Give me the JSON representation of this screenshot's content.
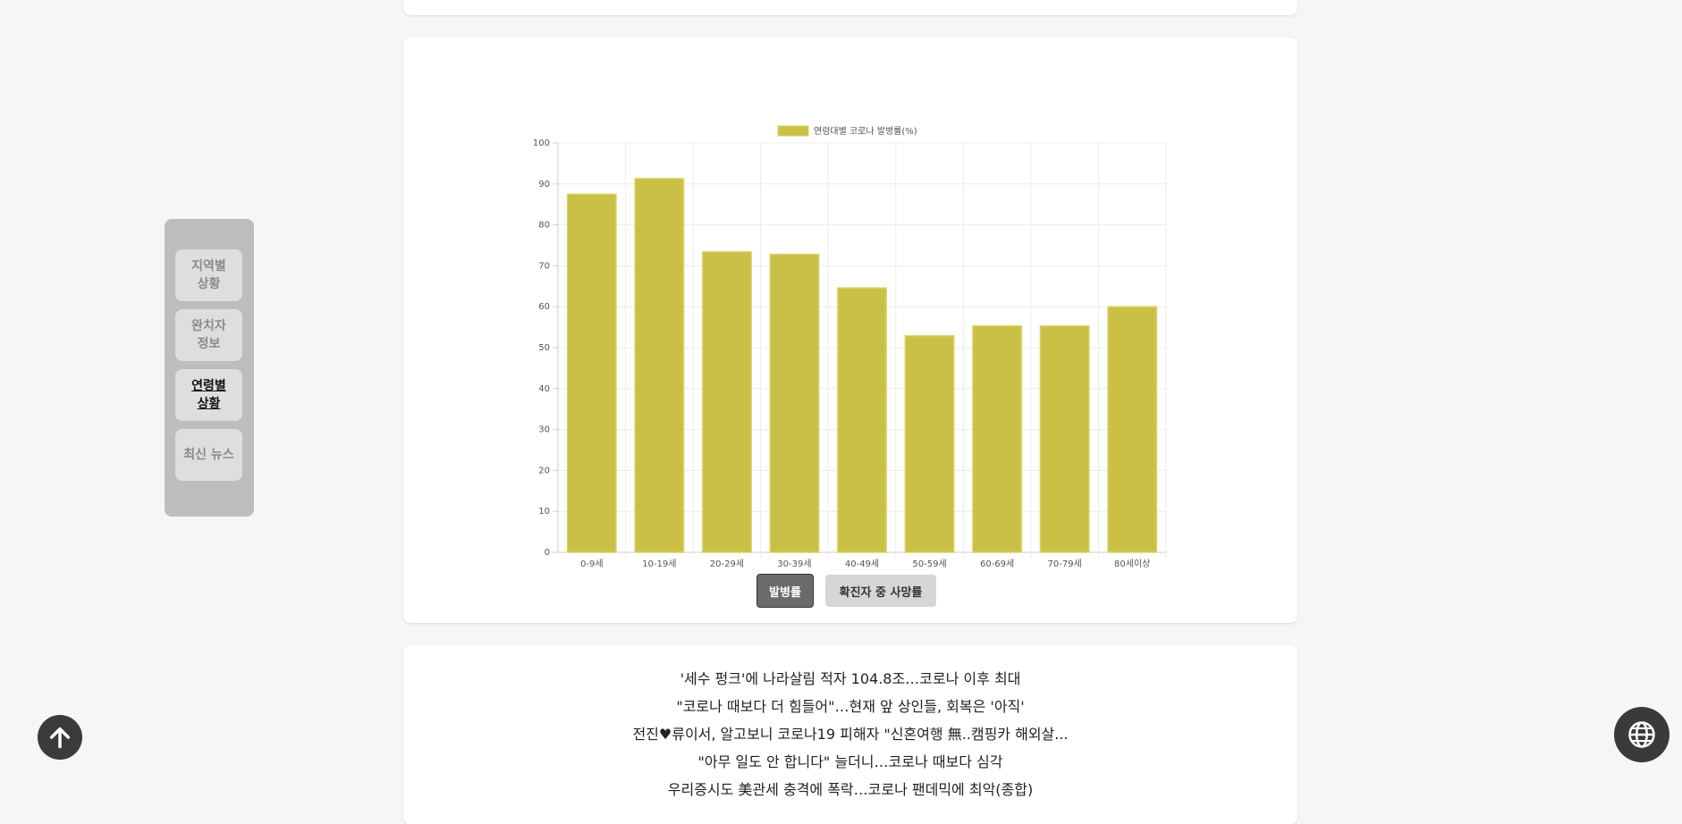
{
  "sidebar": {
    "items": [
      {
        "label": "지역별\n상황",
        "active": false
      },
      {
        "label": "완치자\n정보",
        "active": false
      },
      {
        "label": "연령별\n상황",
        "active": true
      },
      {
        "label": "최신 뉴스",
        "active": false
      }
    ]
  },
  "chart_data": {
    "type": "bar",
    "categories": [
      "0-9세",
      "10-19세",
      "20-29세",
      "30-39세",
      "40-49세",
      "50-59세",
      "60-69세",
      "70-79세",
      "80세이상"
    ],
    "series": [
      {
        "name": "연령대별 코로나 발병률(%)",
        "values": [
          87.5,
          91.3,
          73.4,
          72.8,
          64.6,
          52.9,
          55.3,
          55.3,
          60.0
        ]
      }
    ],
    "yticks": [
      0,
      10,
      20,
      30,
      40,
      50,
      60,
      70,
      80,
      90,
      100
    ],
    "ylim": [
      0,
      100
    ],
    "legend_position": "top",
    "grid": true,
    "bar_color": "#c9c045"
  },
  "toggles": {
    "incidence_label": "발병률",
    "fatality_label": "확진자 중 사망률"
  },
  "news": {
    "items": [
      "'세수 펑크'에 나라살림 적자 104.8조…코로나 이후 최대",
      "\"코로나 때보다 더 힘들어\"…현재 앞 상인들, 회복은 '아직'",
      "전진♥류이서, 알고보니 코로나19 피해자 \"신혼여행 無..캠핑카 해외살...",
      "\"아무 일도 안 합니다\" 늘더니…코로나 때보다 심각",
      "우리증시도 美관세 충격에 폭락…코로나 팬데믹에 최악(종합)"
    ]
  },
  "colors": {
    "background": "#f6f6f6",
    "sidebar": "#bdbdbd",
    "fab": "#3b3b3b"
  },
  "icons": {
    "scroll_top": "arrow-up-icon",
    "language": "globe-icon"
  }
}
